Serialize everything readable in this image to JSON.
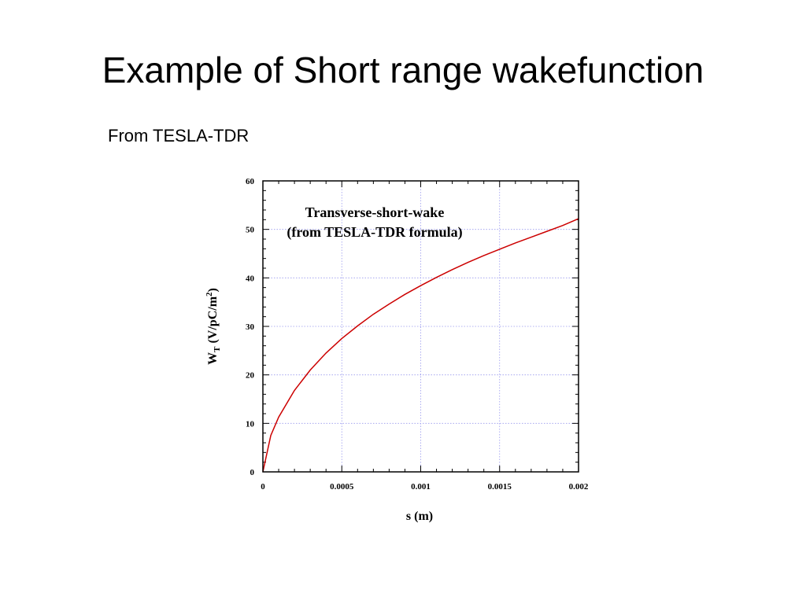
{
  "slide": {
    "title": "Example of Short range wakefunction",
    "subtitle": "From TESLA-TDR"
  },
  "chart_data": {
    "type": "line",
    "annotation": [
      "Transverse-short-wake",
      "(from TESLA-TDR formula)"
    ],
    "xlabel": "s (m)",
    "ylabel": {
      "main": "W",
      "sub": "T",
      "units_pre": " (V/pC/m",
      "sup": "2",
      "units_post": ")"
    },
    "xlim": [
      0,
      0.002
    ],
    "ylim": [
      0,
      60
    ],
    "x_ticks": [
      "0",
      "0.0005",
      "0.001",
      "0.0015",
      "0.002"
    ],
    "y_ticks": [
      "0",
      "10",
      "20",
      "30",
      "40",
      "50",
      "60"
    ],
    "grid": true,
    "line_color": "#cc0000",
    "grid_color": "#9999ee",
    "series": [
      {
        "x": [
          0,
          5e-05,
          0.0001,
          0.0002,
          0.0003,
          0.0004,
          0.0005,
          0.0006,
          0.0007,
          0.0008,
          0.0009,
          0.001,
          0.0011,
          0.0012,
          0.0013,
          0.0014,
          0.0015,
          0.0016,
          0.0017,
          0.0018,
          0.0019,
          0.002
        ],
        "y": [
          0,
          7.5,
          11.3,
          16.8,
          21.0,
          24.5,
          27.5,
          30.1,
          32.5,
          34.6,
          36.6,
          38.4,
          40.1,
          41.7,
          43.2,
          44.6,
          45.9,
          47.2,
          48.4,
          49.6,
          50.8,
          52.2
        ]
      }
    ]
  }
}
